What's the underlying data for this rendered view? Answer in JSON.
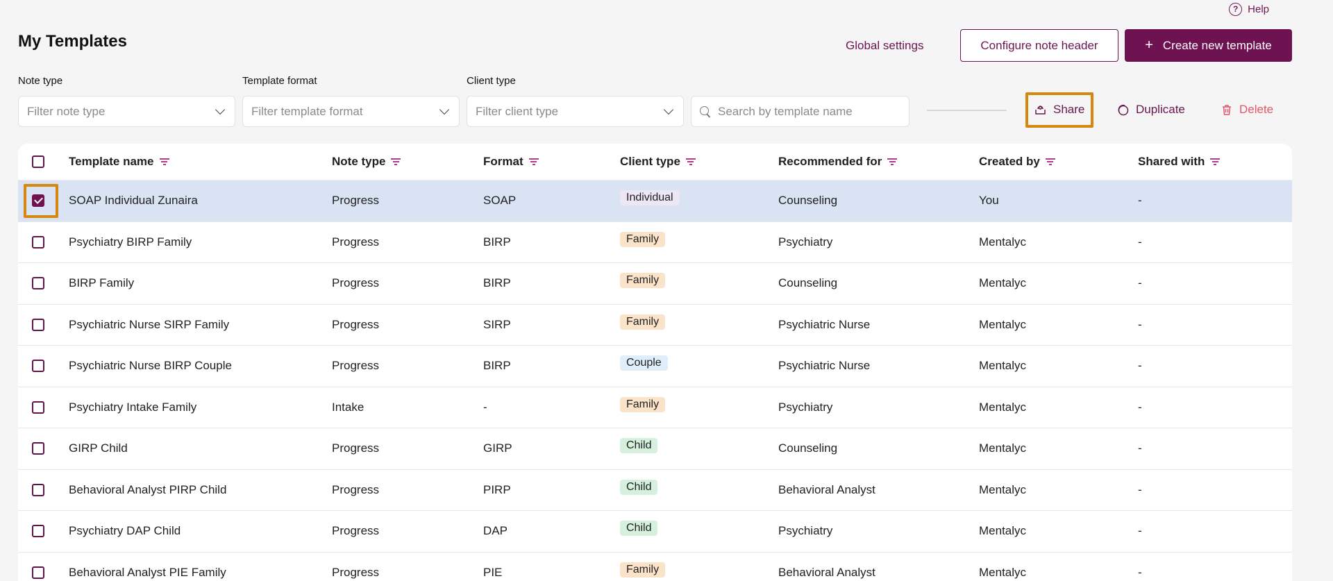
{
  "help": {
    "label": "Help",
    "icon": "question-circle-icon"
  },
  "header": {
    "title": "My Templates",
    "global_settings": "Global settings",
    "configure_note_header": "Configure note header",
    "create_new_template": "Create new template"
  },
  "filters": {
    "note_type": {
      "label": "Note type",
      "placeholder": "Filter note type"
    },
    "template_format": {
      "label": "Template format",
      "placeholder": "Filter template format"
    },
    "client_type": {
      "label": "Client type",
      "placeholder": "Filter client type"
    },
    "search": {
      "placeholder": "Search by template name"
    }
  },
  "actions": {
    "share": "Share",
    "duplicate": "Duplicate",
    "delete": "Delete"
  },
  "colors": {
    "primary": "#6e1252",
    "highlight": "#d6870f",
    "delete": "#e4576a",
    "selected_row": "#d9e3f3"
  },
  "table": {
    "columns": [
      "Template name",
      "Note type",
      "Format",
      "Client type",
      "Recommended for",
      "Created by",
      "Shared with"
    ],
    "rows": [
      {
        "name": "SOAP Individual Zunaira",
        "note_type": "Progress",
        "format": "SOAP",
        "client_type": "Individual",
        "recommended_for": "Counseling",
        "created_by": "You",
        "shared_with": "-",
        "checked": true
      },
      {
        "name": "Psychiatry BIRP Family",
        "note_type": "Progress",
        "format": "BIRP",
        "client_type": "Family",
        "recommended_for": "Psychiatry",
        "created_by": "Mentalyc",
        "shared_with": "-",
        "checked": false
      },
      {
        "name": "BIRP Family",
        "note_type": "Progress",
        "format": "BIRP",
        "client_type": "Family",
        "recommended_for": "Counseling",
        "created_by": "Mentalyc",
        "shared_with": "-",
        "checked": false
      },
      {
        "name": "Psychiatric Nurse SIRP Family",
        "note_type": "Progress",
        "format": "SIRP",
        "client_type": "Family",
        "recommended_for": "Psychiatric Nurse",
        "created_by": "Mentalyc",
        "shared_with": "-",
        "checked": false
      },
      {
        "name": "Psychiatric Nurse BIRP Couple",
        "note_type": "Progress",
        "format": "BIRP",
        "client_type": "Couple",
        "recommended_for": "Psychiatric Nurse",
        "created_by": "Mentalyc",
        "shared_with": "-",
        "checked": false
      },
      {
        "name": "Psychiatry Intake Family",
        "note_type": "Intake",
        "format": "-",
        "client_type": "Family",
        "recommended_for": "Psychiatry",
        "created_by": "Mentalyc",
        "shared_with": "-",
        "checked": false
      },
      {
        "name": "GIRP Child",
        "note_type": "Progress",
        "format": "GIRP",
        "client_type": "Child",
        "recommended_for": "Counseling",
        "created_by": "Mentalyc",
        "shared_with": "-",
        "checked": false
      },
      {
        "name": "Behavioral Analyst PIRP Child",
        "note_type": "Progress",
        "format": "PIRP",
        "client_type": "Child",
        "recommended_for": "Behavioral Analyst",
        "created_by": "Mentalyc",
        "shared_with": "-",
        "checked": false
      },
      {
        "name": "Psychiatry DAP Child",
        "note_type": "Progress",
        "format": "DAP",
        "client_type": "Child",
        "recommended_for": "Psychiatry",
        "created_by": "Mentalyc",
        "shared_with": "-",
        "checked": false
      },
      {
        "name": "Behavioral Analyst PIE Family",
        "note_type": "Progress",
        "format": "PIE",
        "client_type": "Family",
        "recommended_for": "Behavioral Analyst",
        "created_by": "Mentalyc",
        "shared_with": "-",
        "checked": false
      }
    ]
  }
}
